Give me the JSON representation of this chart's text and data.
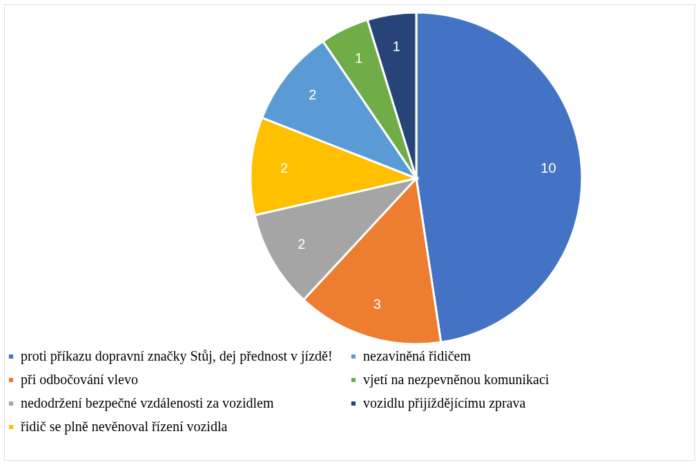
{
  "chart_data": {
    "type": "pie",
    "categories": [
      "proti příkazu dopravní značky Stůj, dej přednost v jízdě!",
      "při odbočování vlevo",
      "nedodržení bezpečné vzdálenosti za vozidlem",
      "řidič se plně nevěnoval řízení vozidla",
      "nezaviněná řidičem",
      "vjetí na nezpevněnou komunikaci",
      "vozidlu přijíždějícímu zprava"
    ],
    "values": [
      10,
      3,
      2,
      2,
      2,
      1,
      1
    ],
    "colors": [
      "#4472c4",
      "#ed7d31",
      "#a5a5a5",
      "#ffc000",
      "#5b9bd5",
      "#70ad47",
      "#264478"
    ],
    "data_labels": true,
    "legend": "bottom"
  }
}
